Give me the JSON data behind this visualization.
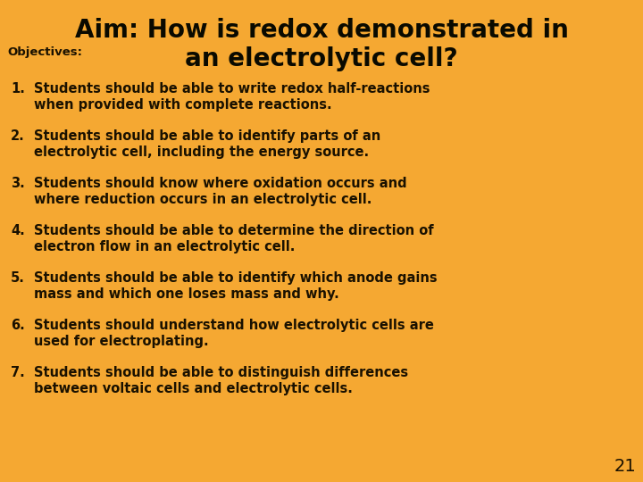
{
  "background_color": "#F5A832",
  "title_line1": "Aim: How is redox demonstrated in",
  "title_line2": "an electrolytic cell?",
  "objectives_label": "Objectives:",
  "objectives": [
    "Students should be able to write redox half-reactions\nwhen provided with complete reactions.",
    "Students should be able to identify parts of an\nelectrolytic cell, including the energy source.",
    "Students should know where oxidation occurs and\nwhere reduction occurs in an electrolytic cell.",
    "Students should be able to determine the direction of\nelectron flow in an electrolytic cell.",
    "Students should be able to identify which anode gains\nmass and which one loses mass and why.",
    "Students should understand how electrolytic cells are\nused for electroplating.",
    "Students should be able to distinguish differences\nbetween voltaic cells and electrolytic cells."
  ],
  "slide_number": "21",
  "title_fontsize": 20,
  "objectives_label_fontsize": 9.5,
  "body_fontsize": 10.5,
  "slide_num_fontsize": 14,
  "text_color": "#1a1100",
  "title_color": "#0a0a00"
}
